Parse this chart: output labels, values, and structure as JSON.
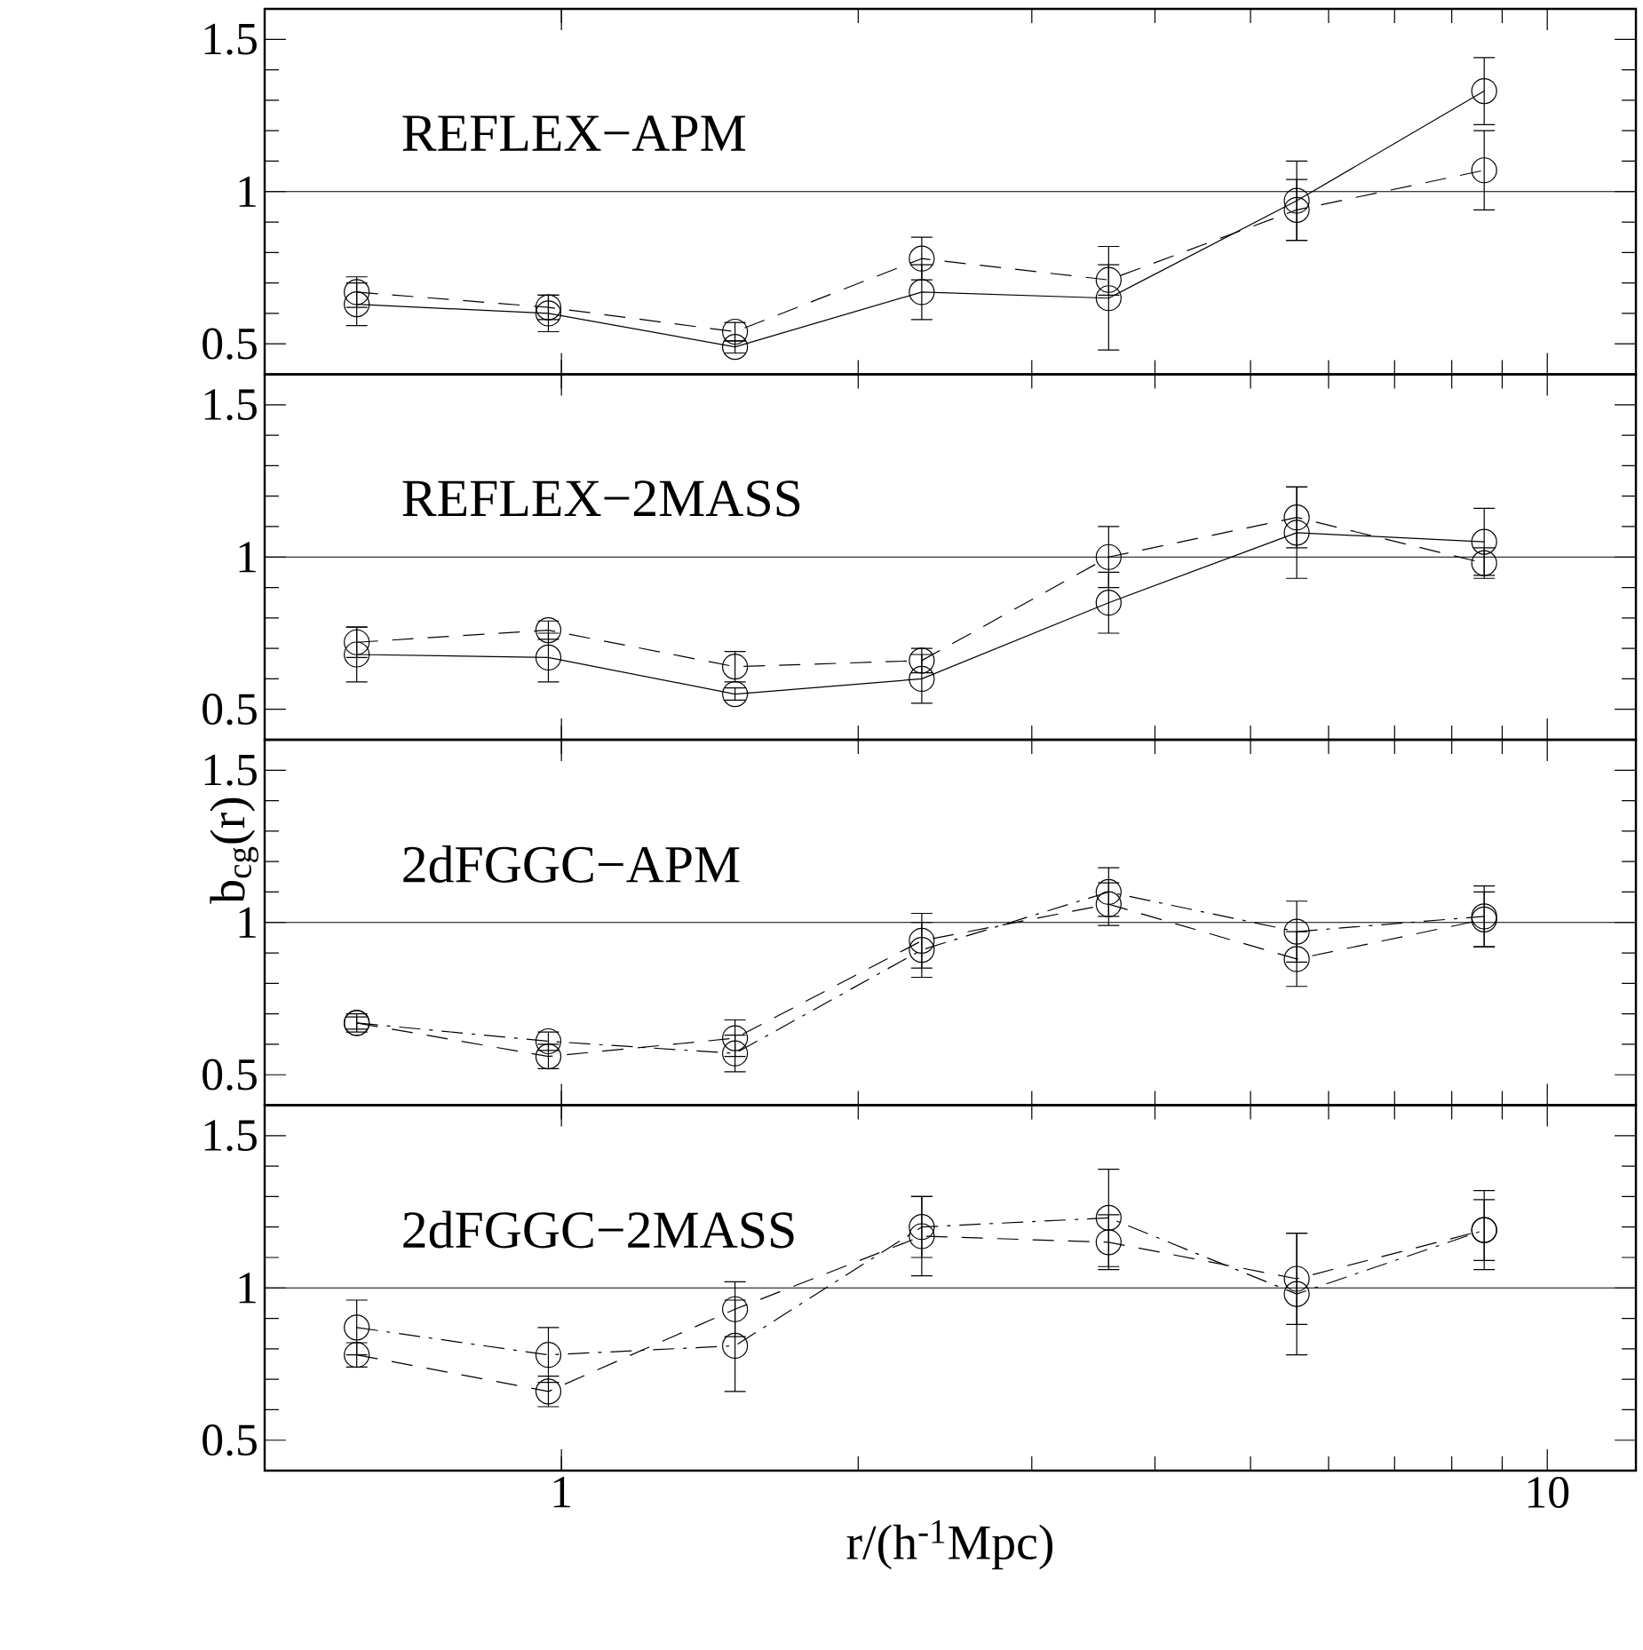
{
  "chart_data": [
    {
      "type": "line",
      "annotations": [
        "REFLEX−APM"
      ],
      "x": [
        0.62,
        0.97,
        1.5,
        2.32,
        3.59,
        5.57,
        8.63
      ],
      "log": "x",
      "xlim": [
        0.5,
        12.3
      ],
      "ylim": [
        0.4,
        1.6
      ],
      "xticks": [
        1,
        10
      ],
      "yticks": [
        0.5,
        1,
        1.5
      ],
      "tick_labels": "y",
      "marker": "circle",
      "ref_lines": [
        {
          "axis": "y",
          "value": 1
        }
      ],
      "series": [
        {
          "color": "#000000",
          "line_style": "solid",
          "values": [
            0.63,
            0.6,
            0.49,
            0.67,
            0.65,
            0.97,
            1.33
          ],
          "errors": [
            0.07,
            0.06,
            0.02,
            0.09,
            0.17,
            0.13,
            0.11
          ]
        },
        {
          "color": "#000000",
          "line_style": "dashed",
          "values": [
            0.67,
            0.62,
            0.54,
            0.78,
            0.71,
            0.94,
            1.07
          ],
          "errors": [
            0.05,
            0.04,
            0.03,
            0.07,
            0.05,
            0.1,
            0.13
          ]
        }
      ]
    },
    {
      "type": "line",
      "annotations": [
        "REFLEX−2MASS"
      ],
      "x": [
        0.62,
        0.97,
        1.5,
        2.32,
        3.59,
        5.57,
        8.63
      ],
      "log": "x",
      "xlim": [
        0.5,
        12.3
      ],
      "ylim": [
        0.4,
        1.6
      ],
      "xticks": [
        1,
        10
      ],
      "yticks": [
        0.5,
        1,
        1.5
      ],
      "tick_labels": "y",
      "marker": "circle",
      "ref_lines": [
        {
          "axis": "y",
          "value": 1
        }
      ],
      "series": [
        {
          "color": "#000000",
          "line_style": "solid",
          "values": [
            0.68,
            0.67,
            0.55,
            0.6,
            0.85,
            1.08,
            1.05
          ],
          "errors": [
            0.09,
            0.08,
            0.02,
            0.08,
            0.1,
            0.15,
            0.11
          ]
        },
        {
          "color": "#000000",
          "line_style": "dashed",
          "values": [
            0.72,
            0.76,
            0.64,
            0.66,
            1.0,
            1.13,
            0.98
          ],
          "errors": [
            0.05,
            0.03,
            0.05,
            0.04,
            0.1,
            0.1,
            0.05
          ]
        }
      ]
    },
    {
      "type": "line",
      "annotations": [
        "2dFGGC−APM"
      ],
      "ylabel": "b$_{cg}$(r)",
      "x": [
        0.62,
        0.97,
        1.5,
        2.32,
        3.59,
        5.57,
        8.63
      ],
      "log": "x",
      "xlim": [
        0.5,
        12.3
      ],
      "ylim": [
        0.4,
        1.6
      ],
      "xticks": [
        1,
        10
      ],
      "yticks": [
        0.5,
        1,
        1.5
      ],
      "tick_labels": "y",
      "marker": "circle",
      "ref_lines": [
        {
          "axis": "y",
          "value": 1
        }
      ],
      "series": [
        {
          "color": "#000000",
          "line_style": "dashed",
          "values": [
            0.67,
            0.56,
            0.62,
            0.94,
            1.06,
            0.88,
            1.01
          ],
          "errors": [
            0.02,
            0.04,
            0.06,
            0.09,
            0.07,
            0.09,
            0.09
          ]
        },
        {
          "color": "#000000",
          "line_style": "dashdot",
          "values": [
            0.67,
            0.61,
            0.57,
            0.91,
            1.1,
            0.97,
            1.02
          ],
          "errors": [
            0.03,
            0.03,
            0.06,
            0.09,
            0.08,
            0.1,
            0.1
          ]
        }
      ]
    },
    {
      "type": "line",
      "annotations": [
        "2dFGGC−2MASS"
      ],
      "xlabel": "r/(h$^{-1}$Mpc)",
      "x": [
        0.62,
        0.97,
        1.5,
        2.32,
        3.59,
        5.57,
        8.63
      ],
      "log": "x",
      "xlim": [
        0.5,
        12.3
      ],
      "ylim": [
        0.4,
        1.6
      ],
      "xticks": [
        1,
        10
      ],
      "yticks": [
        0.5,
        1,
        1.5
      ],
      "marker": "circle",
      "ref_lines": [
        {
          "axis": "y",
          "value": 1
        }
      ],
      "series": [
        {
          "color": "#000000",
          "line_style": "dashed",
          "values": [
            0.78,
            0.66,
            0.93,
            1.17,
            1.15,
            1.03,
            1.19
          ],
          "errors": [
            0.04,
            0.05,
            0.09,
            0.13,
            0.09,
            0.15,
            0.1
          ]
        },
        {
          "color": "#000000",
          "line_style": "dashdot",
          "values": [
            0.87,
            0.78,
            0.81,
            1.2,
            1.23,
            0.98,
            1.19
          ],
          "errors": [
            0.09,
            0.09,
            0.15,
            0.1,
            0.16,
            0.2,
            0.13
          ]
        }
      ]
    }
  ]
}
